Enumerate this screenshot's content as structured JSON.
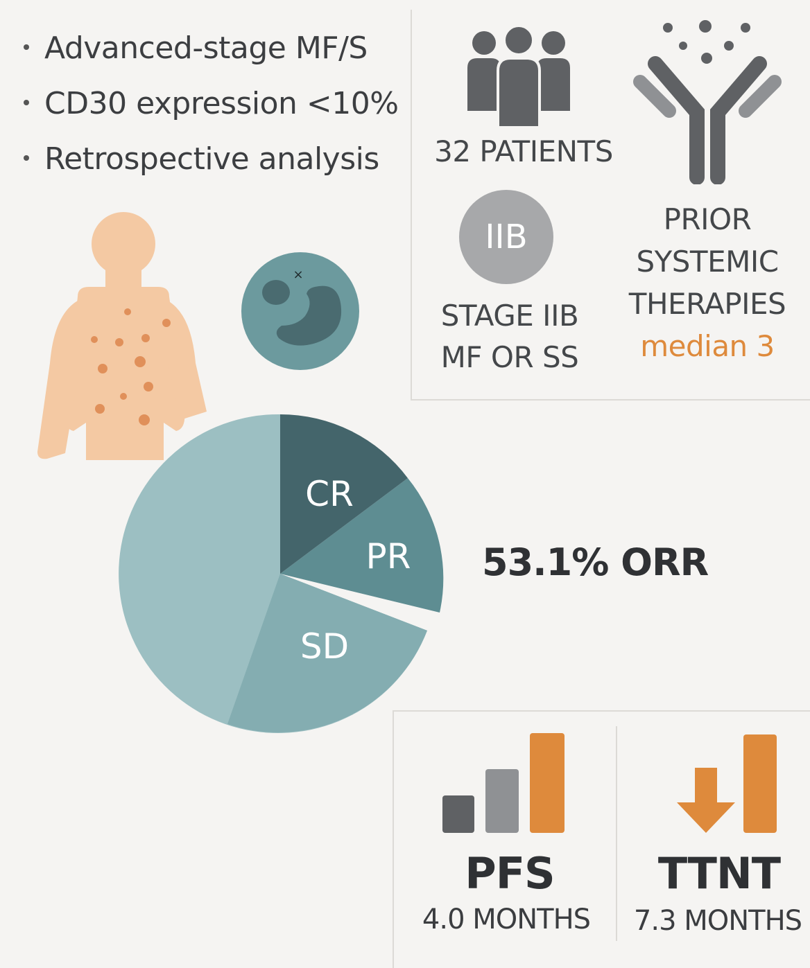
{
  "criteria": [
    "Advanced-stage MF/S",
    "CD30 expression <10%",
    "Retrospective analysis"
  ],
  "patients": {
    "label": "32 PATIENTS",
    "icon": "people-group-icon"
  },
  "stage": {
    "badge": "IIB",
    "line1": "STAGE IIB",
    "line2": "MF OR SS",
    "icon": "stage-badge-icon"
  },
  "prior": {
    "line1": "PRIOR",
    "line2": "SYSTEMIC",
    "line3": "THERAPIES",
    "median": "median 3",
    "icon": "antibody-icon"
  },
  "illustrations": {
    "body": "patient-skin-lesions-icon",
    "cell": "lymphocyte-cell-icon"
  },
  "response": {
    "orr_text": "53.1% ORR",
    "slice_labels": [
      "CR",
      "PR",
      "SD"
    ]
  },
  "outcomes": {
    "pfs": {
      "label": "PFS",
      "value": "4.0 MONTHS",
      "icon": "bar-chart-icon"
    },
    "ttnt": {
      "label": "TTNT",
      "value": "7.3 MONTHS",
      "icon": "down-arrow-bar-icon"
    }
  },
  "colors": {
    "orange": "#de8a3c",
    "gray": "#5f6164",
    "teal_dark": "#44656b",
    "teal_mid": "#5e8d92",
    "teal_light": "#84adb1",
    "teal_pale": "#9cbfc2",
    "skin": "#f4c9a3",
    "lesion": "#e0905a"
  }
}
